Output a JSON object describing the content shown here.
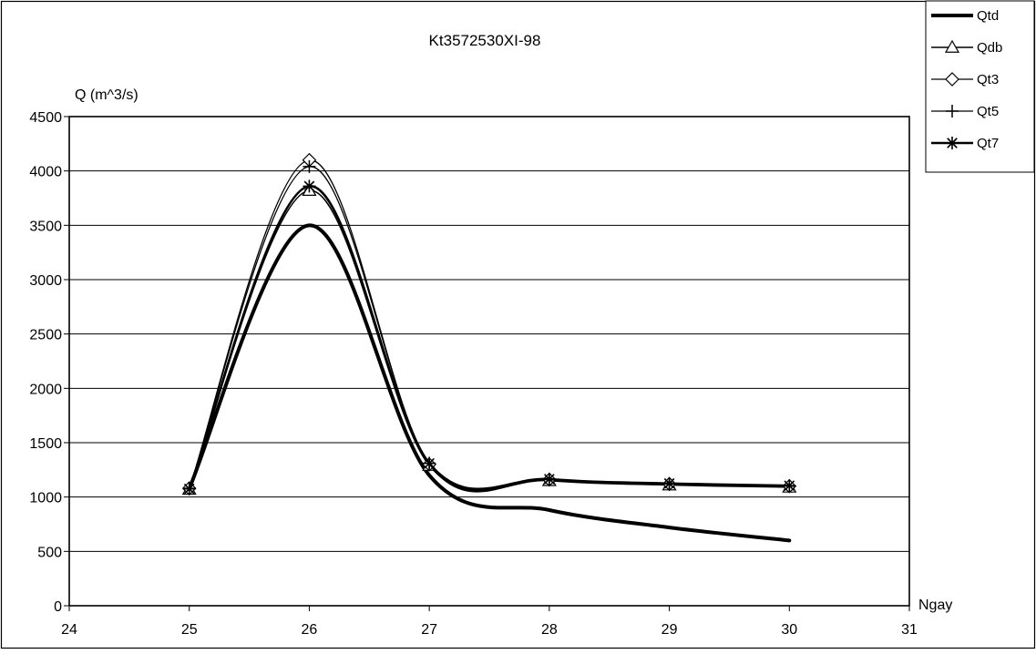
{
  "chart_data": {
    "type": "line",
    "title": "Kt3572530XI-98",
    "xlabel": "Ngay",
    "ylabel": "Q (m^3/s)",
    "xlim": [
      24,
      31
    ],
    "ylim": [
      0,
      4500
    ],
    "x_ticks": [
      24,
      25,
      26,
      27,
      28,
      29,
      30,
      31
    ],
    "y_ticks": [
      0,
      500,
      1000,
      1500,
      2000,
      2500,
      3000,
      3500,
      4000,
      4500
    ],
    "grid": "horizontal",
    "legend_position": "top-right outside",
    "x": [
      25,
      26,
      27,
      28,
      29,
      30
    ],
    "series": [
      {
        "name": "Qtd",
        "marker": "none",
        "values": [
          1080,
          3500,
          1200,
          880,
          720,
          600
        ]
      },
      {
        "name": "Qdb",
        "marker": "triangle",
        "values": [
          1070,
          3820,
          1290,
          1150,
          1110,
          1090
        ]
      },
      {
        "name": "Qt3",
        "marker": "diamond",
        "values": [
          1080,
          4100,
          1300,
          1160,
          1120,
          1100
        ]
      },
      {
        "name": "Qt5",
        "marker": "plus",
        "values": [
          1080,
          4040,
          1310,
          1160,
          1120,
          1100
        ]
      },
      {
        "name": "Qt7",
        "marker": "star",
        "values": [
          1075,
          3860,
          1310,
          1165,
          1125,
          1105
        ]
      }
    ]
  }
}
